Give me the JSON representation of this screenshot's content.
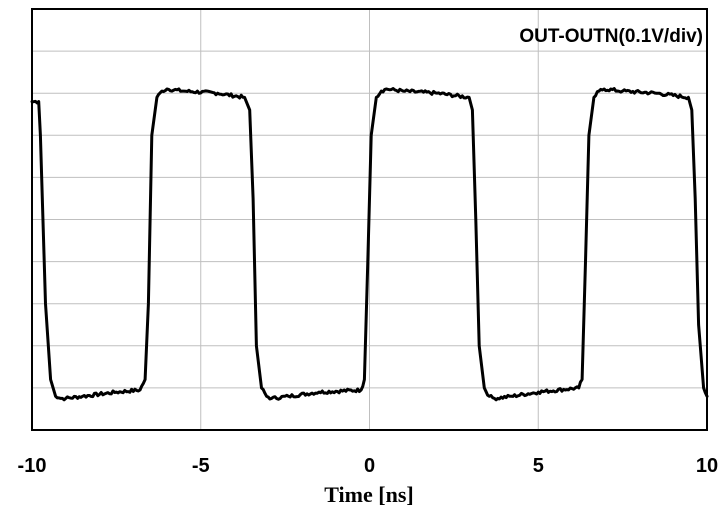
{
  "chart_data": {
    "type": "line",
    "title": "",
    "xlabel": "Time [ns]",
    "ylabel": "",
    "annotation": "OUT-OUTN(0.1V/div)",
    "xlim": [
      -10,
      10
    ],
    "ylim": [
      0,
      10
    ],
    "x_ticks": [
      -10,
      -5,
      0,
      5,
      10
    ],
    "x_tick_labels": [
      "-10",
      "-5",
      "0",
      "5",
      "10"
    ],
    "y_divisions": 10,
    "y_unit": "div (0.1V/div)",
    "grid": true,
    "series": [
      {
        "color": "#000000",
        "x": [
          -10.0,
          -9.8,
          -9.75,
          -9.6,
          -9.45,
          -9.3,
          -9.15,
          -9.0,
          -8.5,
          -7.5,
          -6.8,
          -6.65,
          -6.55,
          -6.45,
          -6.3,
          -6.15,
          -6.0,
          -5.5,
          -4.5,
          -3.7,
          -3.55,
          -3.45,
          -3.35,
          -3.2,
          -3.05,
          -2.9,
          -2.4,
          -1.5,
          -0.25,
          -0.15,
          -0.05,
          0.05,
          0.2,
          0.35,
          0.5,
          1.0,
          2.0,
          2.95,
          3.05,
          3.15,
          3.25,
          3.4,
          3.55,
          3.7,
          4.2,
          5.0,
          6.2,
          6.3,
          6.4,
          6.5,
          6.65,
          6.8,
          6.95,
          7.5,
          8.5,
          9.45,
          9.55,
          9.65,
          9.75,
          9.9,
          10.0
        ],
        "y": [
          7.8,
          7.8,
          7.0,
          3.0,
          1.2,
          0.8,
          0.75,
          0.75,
          0.8,
          0.9,
          0.95,
          1.2,
          3.0,
          7.0,
          7.9,
          8.05,
          8.1,
          8.05,
          8.0,
          7.9,
          7.6,
          5.5,
          2.0,
          1.0,
          0.8,
          0.75,
          0.8,
          0.9,
          0.95,
          1.2,
          4.0,
          7.0,
          7.9,
          8.05,
          8.1,
          8.05,
          8.0,
          7.9,
          7.6,
          5.0,
          2.0,
          1.0,
          0.8,
          0.75,
          0.8,
          0.9,
          1.0,
          1.2,
          4.0,
          7.0,
          7.9,
          8.05,
          8.1,
          8.05,
          8.0,
          7.9,
          7.6,
          5.5,
          2.5,
          1.0,
          0.8
        ]
      }
    ]
  }
}
